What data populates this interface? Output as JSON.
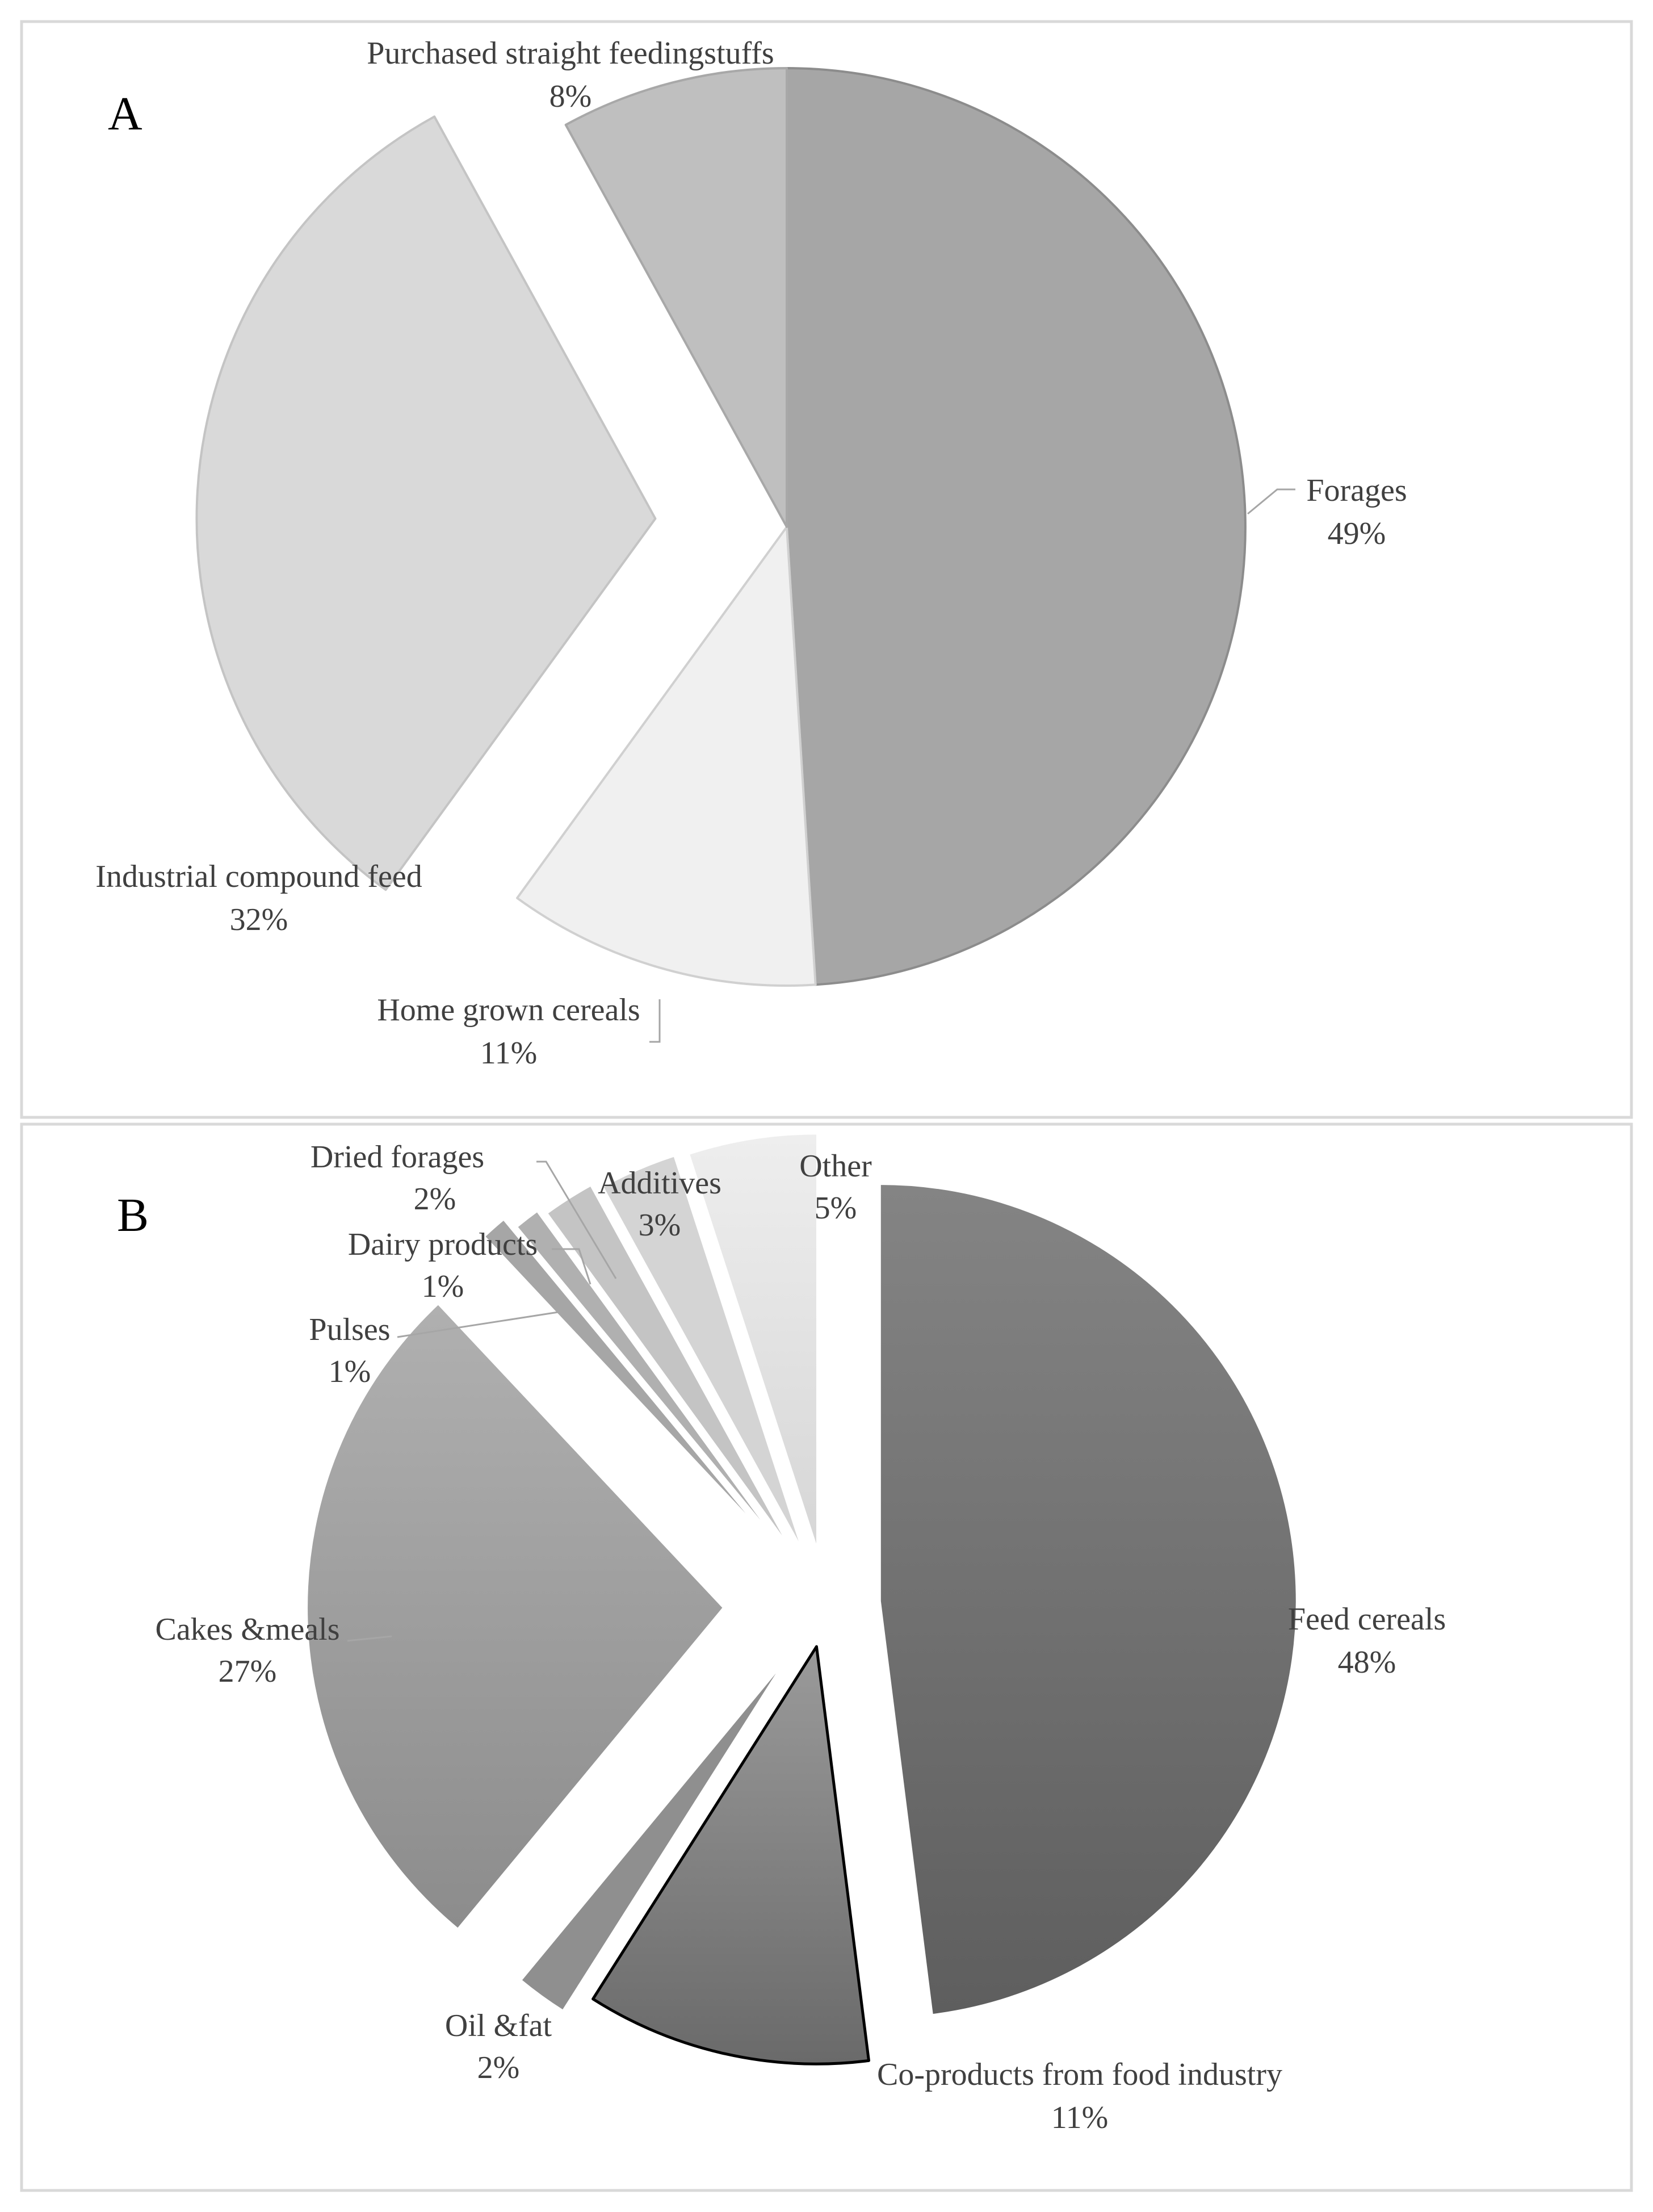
{
  "chart_data": [
    {
      "type": "pie",
      "panel_label": "A",
      "colors": [
        "#a6a6a6",
        "#f0f0f0",
        "#d9d9d9",
        "#bfbfbf"
      ],
      "slices": [
        {
          "name": "Forages",
          "value": 49,
          "label": "49%"
        },
        {
          "name": "Home grown cereals",
          "value": 11,
          "label": "11%"
        },
        {
          "name": "Industrial compound feed",
          "value": 32,
          "label": "32%"
        },
        {
          "name": "Purchased straight feedingstuffs",
          "value": 8,
          "label": "8%"
        }
      ]
    },
    {
      "type": "pie",
      "panel_label": "B",
      "colors": [
        "#6e6e6e",
        "#7a7a7a",
        "#8f8f8f",
        "#9e9e9e",
        "#a6a6a6",
        "#b0b0b0",
        "#c4c4c4",
        "#d4d4d4",
        "#e4e4e4"
      ],
      "slices": [
        {
          "name": "Feed cereals",
          "value": 48,
          "label": "48%"
        },
        {
          "name": "Co-products from food industry",
          "value": 11,
          "label": "11%"
        },
        {
          "name": "Oil &fat",
          "value": 2,
          "label": "2%"
        },
        {
          "name": "Cakes &meals",
          "value": 27,
          "label": "27%"
        },
        {
          "name": "Pulses",
          "value": 1,
          "label": "1%"
        },
        {
          "name": "Dairy products",
          "value": 1,
          "label": "1%"
        },
        {
          "name": "Dried forages",
          "value": 2,
          "label": "2%"
        },
        {
          "name": "Additives",
          "value": 3,
          "label": "3%"
        },
        {
          "name": "Other",
          "value": 5,
          "label": "5%"
        }
      ]
    }
  ]
}
